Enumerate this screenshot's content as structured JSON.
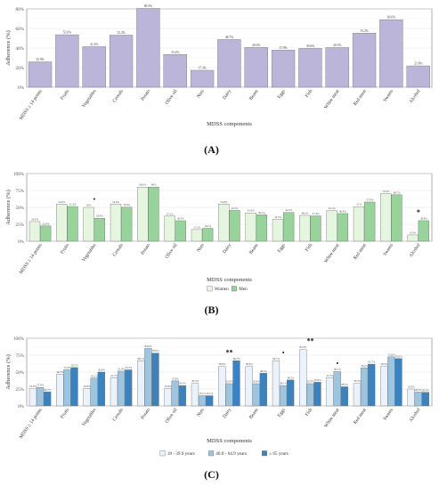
{
  "chart_data": [
    {
      "panel": "(A)",
      "type": "bar",
      "ylabel": "Adherence (%)",
      "xlabel": "MDSS components",
      "ylim": [
        0,
        80
      ],
      "yticks": [
        "0%",
        "20%",
        "40%",
        "60%",
        "80%"
      ],
      "grid": true,
      "categories": [
        "MDSS ≥ 14 points",
        "Fruits",
        "Vegetables",
        "Cereals",
        "Potato",
        "Olive oil",
        "Nuts",
        "Dairy",
        "Beans",
        "Eggs",
        "Fish",
        "White meat",
        "Red meat",
        "Sweets",
        "Alcohol"
      ],
      "series": [
        {
          "values": [
            25.9,
            53.6,
            41.4,
            53.2,
            80.5,
            33.4,
            17.3,
            48.7,
            40.6,
            37.9,
            39.6,
            40.5,
            55.2,
            69.0,
            21.8
          ],
          "labels": [
            "25.9%",
            "53.6%",
            "41.4%",
            "53.2%",
            "80.5%",
            "33.4%",
            "17.3%",
            "48.7%",
            "40.6%",
            "37.9%",
            "39.6%",
            "40.5%",
            "55.2%",
            "69.0%",
            "21.8%"
          ]
        }
      ],
      "colors": [
        "#bcb5da"
      ]
    },
    {
      "panel": "(B)",
      "type": "bar",
      "ylabel": "Adherence (%)",
      "xlabel": "MDSS components",
      "ylim": [
        0,
        100
      ],
      "yticks": [
        "0%",
        "25%",
        "50%",
        "75%",
        "100%"
      ],
      "grid": true,
      "legend_position": "bottom",
      "categories": [
        "MDSS ≥ 14 points",
        "Fruits",
        "Vegetables",
        "Cereals",
        "Potato",
        "Olive oil",
        "Nuts",
        "Dairy",
        "Beans",
        "Eggs",
        "Fish",
        "White meat",
        "Red meat",
        "Sweets",
        "Alcohol"
      ],
      "series": [
        {
          "name": "Women",
          "values": [
            29.0,
            54.9,
            50.0,
            54.9,
            80.0,
            37.1,
            17.3,
            54.8,
            41.9,
            32.3,
            38.2,
            45.1,
            51.0,
            70.4,
            9.3
          ],
          "labels": [
            "29.0%",
            "54.9%",
            "50%",
            "54.9%",
            "80.0%",
            "37.1%",
            "17.3%",
            "54.8%",
            "41.9%",
            "32.3%",
            "38.2%",
            "45.1%",
            "51%",
            "70.4%",
            "9.3%"
          ]
        },
        {
          "name": "Men",
          "values": [
            22.6,
            51.3,
            33.9,
            50.4,
            80.0,
            30.3,
            19.1,
            45.5,
            39.1,
            42.5,
            37.4,
            40.9,
            57.9,
            68.7,
            30.4
          ],
          "labels": [
            "22.6%",
            "51.3%",
            "33.9%",
            "50.4%",
            "80%",
            "30.3%",
            "19.1%",
            "45.5%",
            "39.1%",
            "42.5%",
            "37.4%",
            "40.9%",
            "57.9%",
            "68.7%",
            "30.4%"
          ]
        }
      ],
      "colors": [
        "#e5f5df",
        "#97d39a"
      ],
      "annotations": [
        {
          "category": "Vegetables",
          "text": "•"
        },
        {
          "category": "Alcohol",
          "text": "*"
        }
      ]
    },
    {
      "panel": "(C)",
      "type": "bar",
      "ylabel": "Adherence (%)",
      "xlabel": "MDSS components",
      "ylim": [
        0,
        100
      ],
      "yticks": [
        "0%",
        "25%",
        "50%",
        "75%",
        "100%"
      ],
      "grid": true,
      "legend_position": "bottom",
      "categories": [
        "MDSS ≥ 14 points",
        "Fruits",
        "Vegetables",
        "Cereals",
        "Potato",
        "Olive oil",
        "Nuts",
        "Dairy",
        "Beans",
        "Eggs",
        "Fish",
        "White meat",
        "Red meat",
        "Sweets",
        "Alcohol"
      ],
      "series": [
        {
          "name": "18 - 39.9 years",
          "values": [
            25.6,
            46.7,
            25.6,
            41.7,
            66.7,
            25.6,
            33.3,
            58.3,
            58.3,
            66.7,
            83.3,
            41.7,
            33.3,
            58.3,
            25.0
          ],
          "labels": [
            "25.6%",
            "46.7%",
            "25.6%",
            "41.7%",
            "66.7%",
            "25.6%",
            "33.3%",
            "58.3%",
            "58.3%",
            "66.7%",
            "83.3%",
            "41.7%",
            "33.3%",
            "58.3%",
            "25.0%"
          ]
        },
        {
          "name": "40.0 - 64.9 years",
          "values": [
            27.4,
            53.4,
            41.1,
            51.4,
            84.9,
            37.0,
            15.1,
            32.9,
            32.9,
            30.1,
            32.9,
            50.7,
            56.2,
            72.6,
            20.5
          ],
          "labels": [
            "27.4%",
            "53.4%",
            "41.1%",
            "51.4%",
            "84.9%",
            "37.0%",
            "15.1%",
            "32.9%",
            "32.9%",
            "30.1%",
            "32.9%",
            "50.7%",
            "56.2%",
            "72.6%",
            "20.5%"
          ]
        },
        {
          "name": "≥ 65 years",
          "values": [
            20.7,
            56.7,
            50.0,
            53.3,
            78.0,
            30.0,
            15.1,
            66.7,
            48.3,
            38.3,
            35.0,
            28.3,
            61.7,
            70.0,
            20.0
          ],
          "labels": [
            "20.7%",
            "56.7%",
            "50.0%",
            "53.3%",
            "78.0%",
            "30.0%",
            "15.1%",
            "66.7%",
            "48.3%",
            "38.3%",
            "35.0%",
            "28.3%",
            "61.7%",
            "70.0%",
            "20.0%"
          ]
        }
      ],
      "colors": [
        "#eaf3fb",
        "#9ec5e0",
        "#3a83bf"
      ],
      "annotations": [
        {
          "category": "Dairy",
          "text": "**"
        },
        {
          "category": "Eggs",
          "text": "•"
        },
        {
          "category": "Fish",
          "text": "**"
        },
        {
          "category": "White meat",
          "text": "•"
        }
      ]
    }
  ]
}
